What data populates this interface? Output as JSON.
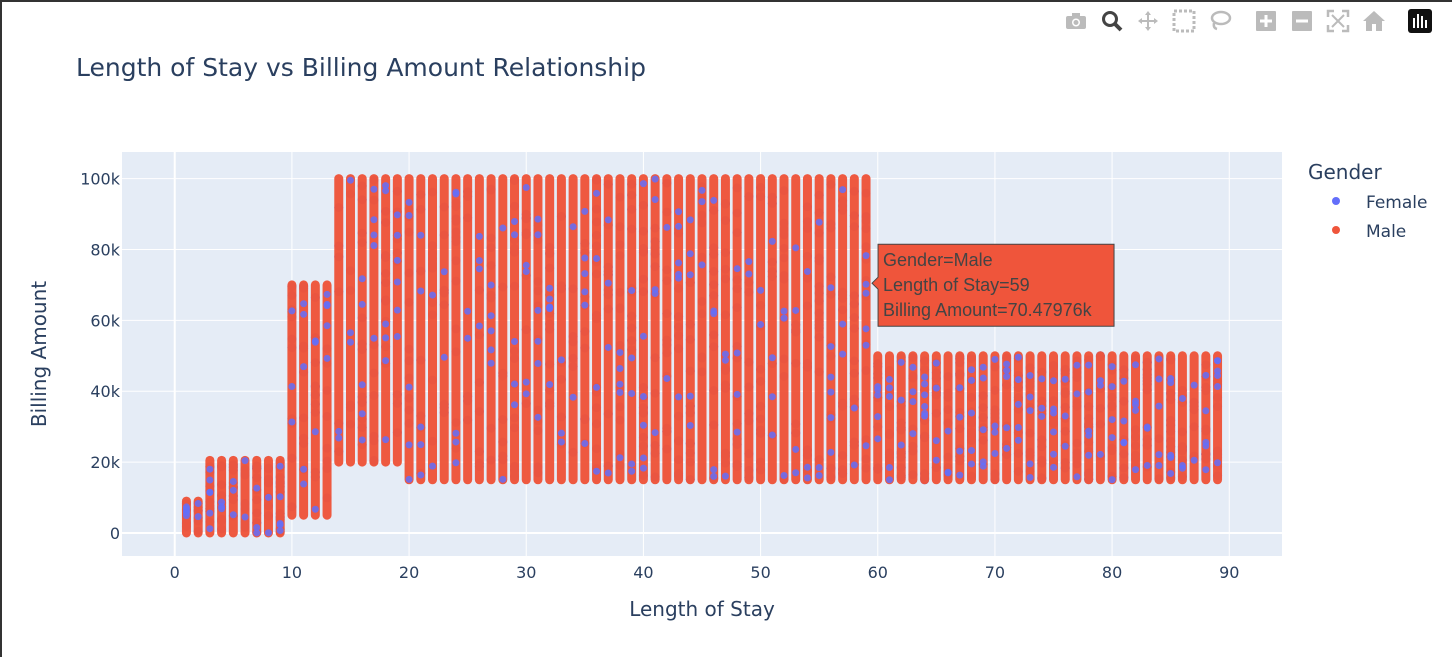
{
  "colors": {
    "female": "#636efa",
    "male": "#ef553b",
    "plot_bg": "#e5ecf6",
    "grid": "#ffffff",
    "text": "#2a3f5f"
  },
  "modebar": {
    "buttons": [
      "camera-icon",
      "zoom-icon",
      "pan-icon",
      "box-select-icon",
      "lasso-icon",
      "zoom-in-icon",
      "zoom-out-icon",
      "autoscale-icon",
      "reset-axes-icon",
      "plotly-logo-icon"
    ]
  },
  "chart_data": {
    "type": "scatter",
    "title": "Length of Stay vs Billing Amount Relationship",
    "xlabel": "Length of Stay",
    "ylabel": "Billing Amount",
    "xlim": [
      -4.5,
      94.5
    ],
    "ylim": [
      -6500,
      107500
    ],
    "x_ticks": [
      0,
      10,
      20,
      30,
      40,
      50,
      60,
      70,
      80,
      90
    ],
    "x_tick_labels": [
      "0",
      "10",
      "20",
      "30",
      "40",
      "50",
      "60",
      "70",
      "80",
      "90"
    ],
    "y_ticks": [
      0,
      20000,
      40000,
      60000,
      80000,
      100000
    ],
    "y_tick_labels": [
      "0",
      "20k",
      "40k",
      "60k",
      "80k",
      "100k"
    ],
    "grid": true,
    "legend": {
      "title": "Gender",
      "placement": "top-right",
      "entries": [
        "Female",
        "Male"
      ]
    },
    "series": [
      {
        "name": "Female",
        "color": "#636efa"
      },
      {
        "name": "Male",
        "color": "#ef553b"
      }
    ],
    "ranges": [
      {
        "x_from": 1,
        "x_to": 2,
        "y_min": 0,
        "y_max": 9000
      },
      {
        "x_from": 3,
        "x_to": 9,
        "y_min": 0,
        "y_max": 20500
      },
      {
        "x_from": 10,
        "x_to": 13,
        "y_min": 5000,
        "y_max": 70000
      },
      {
        "x_from": 14,
        "x_to": 19,
        "y_min": 20000,
        "y_max": 100000
      },
      {
        "x_from": 20,
        "x_to": 59,
        "y_min": 15000,
        "y_max": 100000
      },
      {
        "x_from": 60,
        "x_to": 89,
        "y_min": 15000,
        "y_max": 50000
      }
    ],
    "tooltip": {
      "x": 59,
      "y": 70479.76,
      "lines": [
        "Gender=Male",
        "Length of Stay=59",
        "Billing Amount=70.47976k"
      ]
    }
  }
}
